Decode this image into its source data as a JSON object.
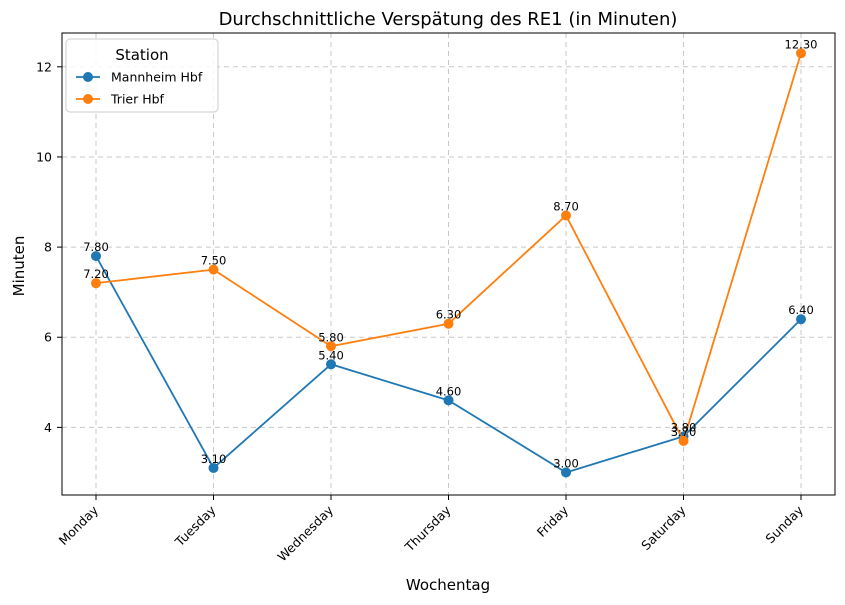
{
  "chart_data": {
    "type": "line",
    "title": "Durchschnittliche Verspätung des RE1 (in Minuten)",
    "xlabel": "Wochentag",
    "ylabel": "Minuten",
    "categories": [
      "Monday",
      "Tuesday",
      "Wednesday",
      "Thursday",
      "Friday",
      "Saturday",
      "Sunday"
    ],
    "series": [
      {
        "name": "Mannheim Hbf",
        "values": [
          7.8,
          3.1,
          5.4,
          4.6,
          3.0,
          3.8,
          6.4
        ],
        "labels": [
          "7.80",
          "3.10",
          "5.40",
          "4.60",
          "3.00",
          "3.80",
          "6.40"
        ],
        "color": "#1f77b4"
      },
      {
        "name": "Trier Hbf",
        "values": [
          7.2,
          7.5,
          5.8,
          6.3,
          8.7,
          3.7,
          12.3
        ],
        "labels": [
          "7.20",
          "7.50",
          "5.80",
          "6.30",
          "8.70",
          "3.70",
          "12.30"
        ],
        "color": "#ff7f0e"
      }
    ],
    "ylim": [
      2.5,
      12.75
    ],
    "yticks": [
      4,
      6,
      8,
      10,
      12
    ],
    "ytick_labels": [
      "4",
      "6",
      "8",
      "10",
      "12"
    ],
    "grid": true,
    "legend": {
      "title": "Station",
      "placement": "top-left"
    }
  }
}
